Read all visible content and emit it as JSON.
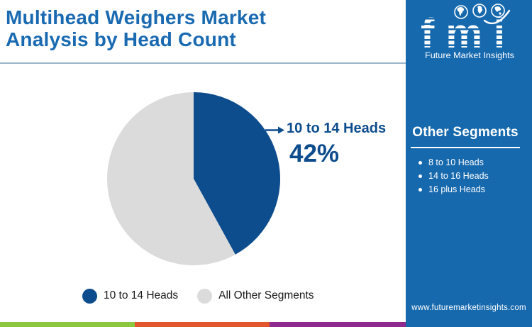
{
  "title": {
    "lines": [
      "Multihead Weighers Market",
      "Analysis by Head Count"
    ],
    "color": "#1a6ab2"
  },
  "logo": {
    "text": "fmi",
    "tagline": "Future Market Insights",
    "globe_icons": [
      "americas-globe-icon",
      "europe-africa-globe-icon",
      "asia-pacific-globe-icon"
    ]
  },
  "chart_data": {
    "type": "pie",
    "title": "Multihead Weighers Market Analysis by Head Count",
    "labels": [
      "10 to 14 Heads",
      "All Other Segments"
    ],
    "values": [
      42,
      58
    ],
    "colors": [
      "#0d4c8d",
      "#dbdbdb"
    ],
    "start_angle_deg": 0,
    "direction": "clockwise",
    "annotation": {
      "label": "10 to 14 Heads",
      "value_text": "42%",
      "slice": "10 to 14 Heads"
    },
    "legend_position": "bottom"
  },
  "callout": {
    "label": "10 to 14 Heads",
    "value": "42%"
  },
  "legend": [
    {
      "label": "10 to 14 Heads",
      "color": "#0d4c8d"
    },
    {
      "label": "All Other Segments",
      "color": "#dbdbdb"
    }
  ],
  "sidebar": {
    "background": "#1769ae",
    "heading": "Other Segments",
    "items": [
      "8 to 10 Heads",
      "14 to 16 Heads",
      "16 plus Heads"
    ],
    "website": "www.futuremarketinsights.com"
  },
  "footer_stripe": [
    "#8dc63f",
    "#e2552d",
    "#8e2a8e"
  ],
  "colors": {
    "pie_primary": "#0d4c8d",
    "pie_secondary": "#dbdbdb",
    "divider": "#9db5c9",
    "legend_text": "#1a1a1a"
  }
}
